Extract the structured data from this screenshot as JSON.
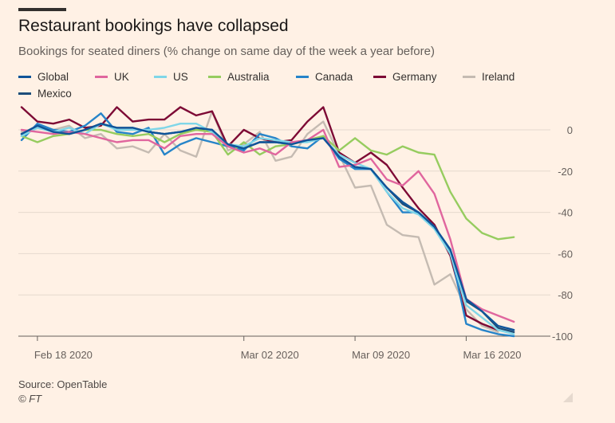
{
  "title": "Restaurant bookings have collapsed",
  "subtitle": "Bookings for seated diners (% change on same day of the week a year before)",
  "source": "Source: OpenTable",
  "copyright": "© FT",
  "colors": {
    "background": "#fff1e5",
    "grid": "#e6d9ce",
    "axis": "#66605c",
    "text": "#33302e"
  },
  "chart_data": {
    "type": "line",
    "title": "Restaurant bookings have collapsed",
    "subtitle": "Bookings for seated diners (% change on same day of the week a year before)",
    "xlabel": "",
    "ylabel": "",
    "x": [
      "2020-02-17",
      "2020-02-18",
      "2020-02-19",
      "2020-02-20",
      "2020-02-21",
      "2020-02-22",
      "2020-02-23",
      "2020-02-24",
      "2020-02-25",
      "2020-02-26",
      "2020-02-27",
      "2020-02-28",
      "2020-02-29",
      "2020-03-01",
      "2020-03-02",
      "2020-03-03",
      "2020-03-04",
      "2020-03-05",
      "2020-03-06",
      "2020-03-07",
      "2020-03-08",
      "2020-03-09",
      "2020-03-10",
      "2020-03-11",
      "2020-03-12",
      "2020-03-13",
      "2020-03-14",
      "2020-03-15",
      "2020-03-16",
      "2020-03-17",
      "2020-03-18",
      "2020-03-19",
      "2020-03-20",
      "2020-03-21"
    ],
    "x_ticks": [
      {
        "date": "2020-02-18",
        "label": "Feb 18 2020"
      },
      {
        "date": "2020-03-02",
        "label": "Mar 02 2020"
      },
      {
        "date": "2020-03-09",
        "label": "Mar 09 2020"
      },
      {
        "date": "2020-03-16",
        "label": "Mar 16 2020"
      }
    ],
    "y_ticks": [
      0,
      -20,
      -40,
      -60,
      -80,
      -100
    ],
    "ylim": [
      -100,
      12
    ],
    "y_axis_side": "right",
    "grid": true,
    "legend_position": "top",
    "series": [
      {
        "name": "Global",
        "color": "#0f5499",
        "values": [
          -2,
          2,
          -1,
          -2,
          0,
          3,
          1,
          1,
          -1,
          -2,
          -1,
          1,
          0,
          -7,
          -9,
          -6,
          -6,
          -7,
          -5,
          -4,
          -13,
          -18,
          -19,
          -28,
          -35,
          -40,
          -47,
          -58,
          -82,
          -88,
          -95,
          -97,
          null,
          null
        ]
      },
      {
        "name": "UK",
        "color": "#e0669e",
        "values": [
          0,
          -1,
          -2,
          -1,
          -2,
          -4,
          -6,
          -5,
          -5,
          -9,
          -3,
          -2,
          -2,
          -8,
          -11,
          -9,
          -12,
          -6,
          -5,
          0,
          -18,
          -17,
          -14,
          -24,
          -27,
          -20,
          -31,
          -53,
          -82,
          -87,
          -90,
          -93,
          null,
          null
        ]
      },
      {
        "name": "US",
        "color": "#7fd6e8",
        "values": [
          -3,
          1,
          -1,
          1,
          -2,
          3,
          0,
          0,
          0,
          1,
          3,
          3,
          -1,
          -7,
          -8,
          -4,
          -5,
          -6,
          -6,
          -4,
          -12,
          -16,
          -19,
          -30,
          -38,
          -41,
          -48,
          -60,
          -85,
          -91,
          -97,
          -99,
          null,
          null
        ]
      },
      {
        "name": "Australia",
        "color": "#96cc5f",
        "values": [
          -3,
          -6,
          -3,
          -2,
          0,
          0,
          -2,
          -3,
          -2,
          -6,
          -2,
          0,
          -1,
          -12,
          -6,
          -12,
          -8,
          -7,
          -5,
          -3,
          -10,
          -4,
          -10,
          -12,
          -8,
          -11,
          -12,
          -30,
          -43,
          -50,
          -53,
          -52,
          null,
          null
        ]
      },
      {
        "name": "Canada",
        "color": "#2684c9",
        "values": [
          -5,
          3,
          0,
          -1,
          2,
          8,
          -1,
          -2,
          1,
          -12,
          -7,
          -4,
          -6,
          -8,
          -10,
          -2,
          -4,
          -8,
          -9,
          -3,
          -14,
          -19,
          -19,
          -30,
          -40,
          -40,
          -47,
          -58,
          -94,
          -97,
          -99,
          -100,
          null,
          null
        ]
      },
      {
        "name": "Germany",
        "color": "#7d0a35",
        "values": [
          11,
          4,
          3,
          5,
          1,
          2,
          11,
          4,
          5,
          5,
          11,
          7,
          9,
          -8,
          0,
          -4,
          -6,
          -5,
          4,
          11,
          -11,
          -16,
          -11,
          -17,
          -28,
          -38,
          -46,
          -61,
          -90,
          -94,
          -97,
          null,
          null,
          null
        ]
      },
      {
        "name": "Ireland",
        "color": "#c5bbb2",
        "values": [
          -1,
          1,
          0,
          2,
          -4,
          -2,
          -9,
          -8,
          -11,
          -2,
          -10,
          -13,
          9,
          -10,
          -7,
          -1,
          -15,
          -13,
          -2,
          4,
          -12,
          -28,
          -27,
          -46,
          -51,
          -52,
          -75,
          -70,
          -87,
          -95,
          -98,
          null,
          null,
          null
        ]
      },
      {
        "name": "Mexico",
        "color": "#1d4e7a",
        "values": [
          -2,
          2,
          -1,
          -2,
          0,
          3,
          1,
          1,
          -1,
          -2,
          -1,
          0,
          0,
          -8,
          -9,
          -6,
          -6,
          -7,
          -5,
          -4,
          -13,
          -18,
          -19,
          -28,
          -36,
          -40,
          -47,
          -60,
          -83,
          -88,
          -96,
          -98,
          null,
          null
        ]
      }
    ]
  }
}
